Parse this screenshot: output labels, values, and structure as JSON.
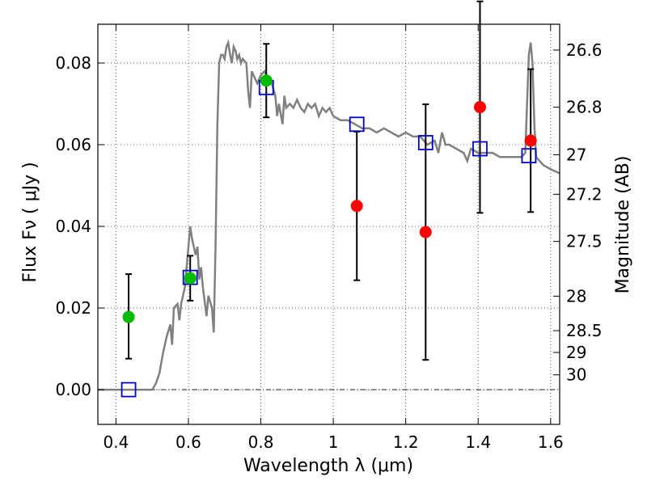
{
  "chart_data": {
    "type": "scatter",
    "xlabel": "Wavelength  λ (μm)",
    "ylabel": "Flux  Fν  ( μJy )",
    "y2label": "Magnitude (AB)",
    "xlim": [
      0.35,
      1.625
    ],
    "ylim": [
      -0.0085,
      0.0895
    ],
    "grid": true,
    "xticks": [
      {
        "value": 0.4,
        "label": "0.4"
      },
      {
        "value": 0.6,
        "label": "0.6"
      },
      {
        "value": 0.8,
        "label": "0.8"
      },
      {
        "value": 1.0,
        "label": "1"
      },
      {
        "value": 1.2,
        "label": "1.2"
      },
      {
        "value": 1.4,
        "label": "1.4"
      },
      {
        "value": 1.6,
        "label": "1.6"
      }
    ],
    "yticks": [
      {
        "value": 0.0,
        "label": "0.00"
      },
      {
        "value": 0.02,
        "label": "0.02"
      },
      {
        "value": 0.04,
        "label": "0.04"
      },
      {
        "value": 0.06,
        "label": "0.06"
      },
      {
        "value": 0.08,
        "label": "0.08"
      }
    ],
    "y2ticks": [
      {
        "value": 26.6,
        "label": "26.6"
      },
      {
        "value": 26.8,
        "label": "26.8"
      },
      {
        "value": 27.0,
        "label": "27"
      },
      {
        "value": 27.2,
        "label": "27.2"
      },
      {
        "value": 27.5,
        "label": "27.5"
      },
      {
        "value": 28.0,
        "label": "28"
      },
      {
        "value": 28.5,
        "label": "28.5"
      },
      {
        "value": 29.0,
        "label": "29"
      },
      {
        "value": 30.0,
        "label": "30"
      }
    ],
    "colors": {
      "sed": "#808080",
      "detection": "#00bb00",
      "upper_limit": "#ff0000",
      "model": "#0000cc",
      "errorbar": "#000000"
    },
    "sed_line": [
      [
        0.35,
        0.0
      ],
      [
        0.5,
        0.0
      ],
      [
        0.51,
        0.0015
      ],
      [
        0.52,
        0.004
      ],
      [
        0.53,
        0.009
      ],
      [
        0.54,
        0.013
      ],
      [
        0.55,
        0.016
      ],
      [
        0.555,
        0.011
      ],
      [
        0.56,
        0.02
      ],
      [
        0.57,
        0.021
      ],
      [
        0.575,
        0.017
      ],
      [
        0.58,
        0.021
      ],
      [
        0.59,
        0.025
      ],
      [
        0.6,
        0.035
      ],
      [
        0.605,
        0.04
      ],
      [
        0.61,
        0.037
      ],
      [
        0.62,
        0.033
      ],
      [
        0.625,
        0.035
      ],
      [
        0.63,
        0.027
      ],
      [
        0.635,
        0.03
      ],
      [
        0.64,
        0.025
      ],
      [
        0.65,
        0.018
      ],
      [
        0.655,
        0.023
      ],
      [
        0.665,
        0.02
      ],
      [
        0.67,
        0.014
      ],
      [
        0.675,
        0.035
      ],
      [
        0.68,
        0.065
      ],
      [
        0.685,
        0.08
      ],
      [
        0.69,
        0.082
      ],
      [
        0.695,
        0.082
      ],
      [
        0.7,
        0.081
      ],
      [
        0.705,
        0.084
      ],
      [
        0.71,
        0.085
      ],
      [
        0.715,
        0.082
      ],
      [
        0.72,
        0.08
      ],
      [
        0.725,
        0.084
      ],
      [
        0.73,
        0.083
      ],
      [
        0.735,
        0.081
      ],
      [
        0.74,
        0.082
      ],
      [
        0.745,
        0.08
      ],
      [
        0.75,
        0.081
      ],
      [
        0.76,
        0.08
      ],
      [
        0.765,
        0.073
      ],
      [
        0.77,
        0.069
      ],
      [
        0.775,
        0.078
      ],
      [
        0.785,
        0.076
      ],
      [
        0.79,
        0.075
      ],
      [
        0.8,
        0.077
      ],
      [
        0.81,
        0.078
      ],
      [
        0.82,
        0.076
      ],
      [
        0.83,
        0.075
      ],
      [
        0.84,
        0.072
      ],
      [
        0.845,
        0.067
      ],
      [
        0.85,
        0.07
      ],
      [
        0.86,
        0.065
      ],
      [
        0.865,
        0.072
      ],
      [
        0.87,
        0.069
      ],
      [
        0.88,
        0.07
      ],
      [
        0.89,
        0.069
      ],
      [
        0.9,
        0.071
      ],
      [
        0.91,
        0.069
      ],
      [
        0.92,
        0.068
      ],
      [
        0.93,
        0.07
      ],
      [
        0.94,
        0.069
      ],
      [
        0.95,
        0.07
      ],
      [
        0.96,
        0.067
      ],
      [
        0.97,
        0.069
      ],
      [
        0.98,
        0.068
      ],
      [
        0.99,
        0.069
      ],
      [
        1.0,
        0.067
      ],
      [
        1.02,
        0.066
      ],
      [
        1.04,
        0.066
      ],
      [
        1.06,
        0.065
      ],
      [
        1.08,
        0.064
      ],
      [
        1.1,
        0.064
      ],
      [
        1.12,
        0.063
      ],
      [
        1.14,
        0.064
      ],
      [
        1.16,
        0.063
      ],
      [
        1.18,
        0.062
      ],
      [
        1.2,
        0.063
      ],
      [
        1.22,
        0.062
      ],
      [
        1.24,
        0.062
      ],
      [
        1.26,
        0.06
      ],
      [
        1.28,
        0.061
      ],
      [
        1.29,
        0.058
      ],
      [
        1.3,
        0.063
      ],
      [
        1.31,
        0.06
      ],
      [
        1.32,
        0.06
      ],
      [
        1.34,
        0.059
      ],
      [
        1.36,
        0.058
      ],
      [
        1.37,
        0.056
      ],
      [
        1.38,
        0.059
      ],
      [
        1.4,
        0.058
      ],
      [
        1.42,
        0.058
      ],
      [
        1.44,
        0.058
      ],
      [
        1.46,
        0.057
      ],
      [
        1.48,
        0.057
      ],
      [
        1.5,
        0.057
      ],
      [
        1.52,
        0.057
      ],
      [
        1.53,
        0.058
      ],
      [
        1.535,
        0.07
      ],
      [
        1.54,
        0.082
      ],
      [
        1.545,
        0.085
      ],
      [
        1.55,
        0.08
      ],
      [
        1.555,
        0.065
      ],
      [
        1.56,
        0.057
      ],
      [
        1.58,
        0.055
      ],
      [
        1.6,
        0.054
      ],
      [
        1.625,
        0.053
      ]
    ],
    "detections": [
      {
        "x": 0.435,
        "y": 0.0178,
        "yerr": [
          0.0102,
          0.0105
        ]
      },
      {
        "x": 0.605,
        "y": 0.0273,
        "yerr": [
          0.0055,
          0.0055
        ]
      },
      {
        "x": 0.815,
        "y": 0.0757,
        "yerr": [
          0.009,
          0.009
        ]
      }
    ],
    "upper_limits": [
      {
        "x": 1.065,
        "y": 0.045,
        "yerr": [
          0.0182,
          0.0182
        ]
      },
      {
        "x": 1.255,
        "y": 0.0386,
        "yerr": [
          0.0313,
          0.0313
        ]
      },
      {
        "x": 1.405,
        "y": 0.0692,
        "yerr": [
          0.0259,
          0.0259
        ]
      },
      {
        "x": 1.545,
        "y": 0.061,
        "yerr": [
          0.0175,
          0.0175
        ]
      }
    ],
    "model_points": [
      {
        "x": 0.435,
        "y": 0.0
      },
      {
        "x": 0.605,
        "y": 0.0275
      },
      {
        "x": 0.815,
        "y": 0.074
      },
      {
        "x": 1.065,
        "y": 0.065
      },
      {
        "x": 1.255,
        "y": 0.0605
      },
      {
        "x": 1.405,
        "y": 0.059
      },
      {
        "x": 1.54,
        "y": 0.0573
      }
    ]
  }
}
